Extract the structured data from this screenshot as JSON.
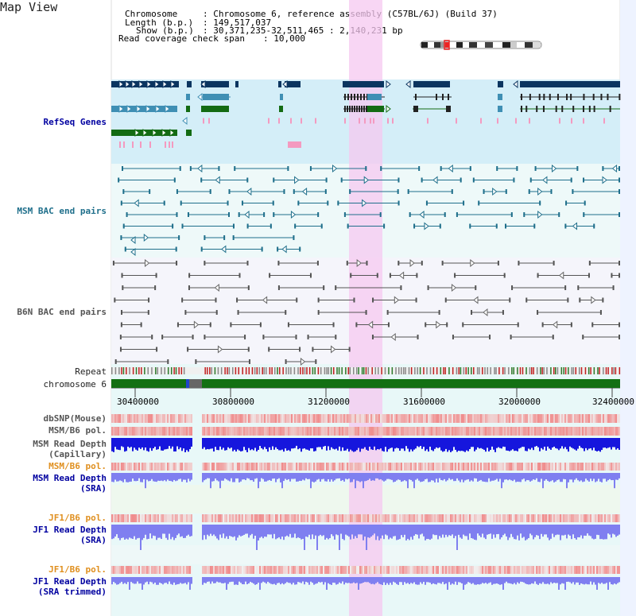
{
  "page": {
    "title": "Map View"
  },
  "info": {
    "chromosome_label": "Chromosome",
    "chromosome_value": ": Chromosome 6, reference assembly (C57BL/6J) (Build 37)",
    "length_label": "Length (b.p.)",
    "length_value": ": 149,517,037",
    "show_label": "Show (b.p.)",
    "show_value": ": 30,371,235-32,511,465 : 2,140,231 bp",
    "coverage_label": "Read coverage check span",
    "coverage_value": ": 10,000"
  },
  "tracks": {
    "refseq": "RefSeq Genes",
    "msm_bac": "MSM BAC end pairs",
    "b6n_bac": "B6N BAC end pairs",
    "repeat": "Repeat",
    "chromosome": "chromosome 6",
    "dbsnp": "dbSNP(Mouse)",
    "msm_b6_pol_1": "MSM/B6 pol.",
    "msm_read_depth_cap_1": "MSM Read Depth",
    "msm_read_depth_cap_2": "(Capillary)",
    "msm_b6_pol_2": "MSM/B6 pol.",
    "msm_read_depth_sra_1": "MSM Read Depth",
    "msm_read_depth_sra_2": "(SRA)",
    "jf1_b6_pol_1": "JF1/B6 pol.",
    "jf1_read_depth_sra_1": "JF1 Read Depth",
    "jf1_read_depth_sra_2": "(SRA)",
    "jf1_b6_pol_2": "JF1/B6 pol.",
    "jf1_read_depth_trim_1": "JF1 Read Depth",
    "jf1_read_depth_trim_2": "(SRA trimmed)"
  },
  "axis": {
    "ticks": [
      "30400000",
      "30800000",
      "31200000",
      "31600000",
      "32000000",
      "32400000"
    ]
  },
  "colors": {
    "refseq_bg": "#d4eef8",
    "bac_bg": "#eef9f9",
    "highlight": "#f5c8f0",
    "gene_dark": "#0b3560",
    "gene_mid": "#3f8fb4",
    "gene_green": "#136b13",
    "pink": "#f49ac0",
    "msm_bac_line": "#1f6f8b",
    "b6n_bac_line": "#555555",
    "chrom_green": "#137013",
    "red_snp": "#ee3333",
    "depth_blue": "#1616dd",
    "depth_light": "#7f7ff0",
    "orange_label": "#e09020",
    "blue_label": "#0000a0"
  }
}
